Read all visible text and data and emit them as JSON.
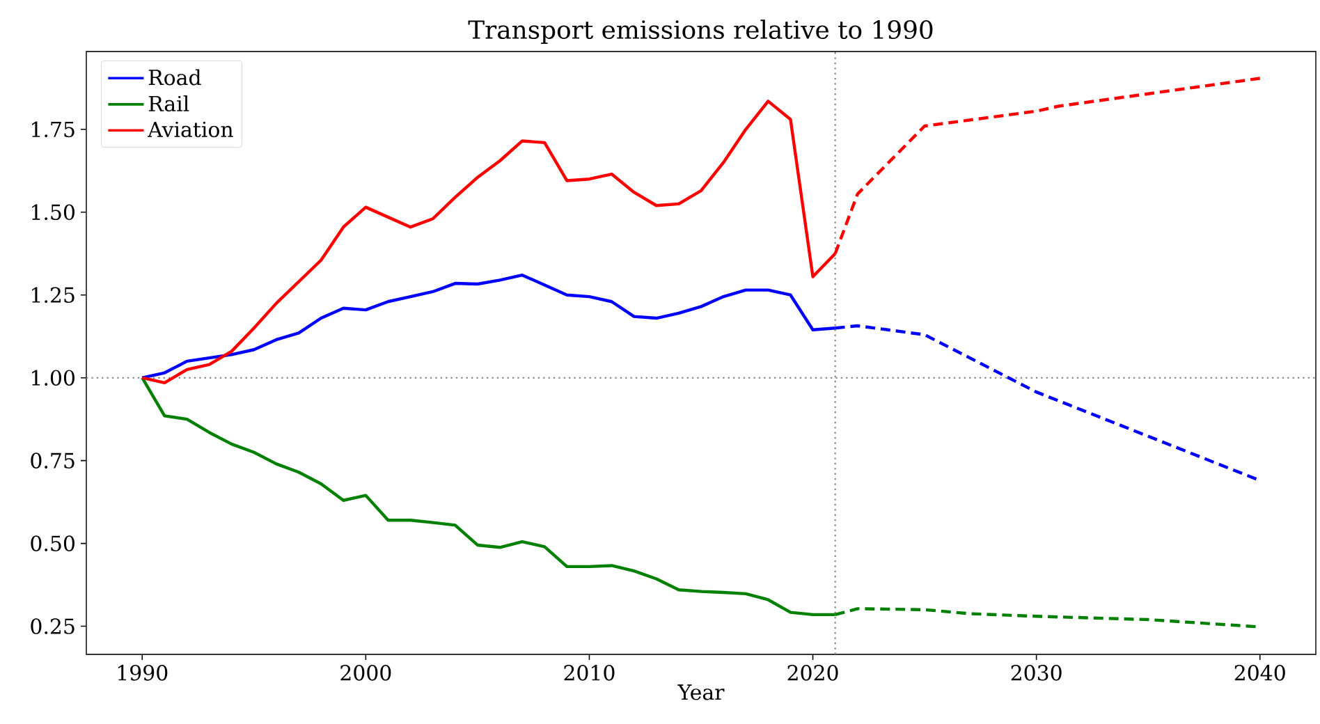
{
  "chart_data": {
    "type": "line",
    "title": "Transport emissions relative to 1990",
    "xlabel": "Year",
    "xlim": [
      1987.5,
      2042.5
    ],
    "xticks": [
      1990,
      2000,
      2010,
      2020,
      2030,
      2040
    ],
    "ylim": [
      0.165,
      1.985
    ],
    "yticks": [
      {
        "value": 0.25,
        "label": "0.25"
      },
      {
        "value": 0.5,
        "label": "0.50"
      },
      {
        "value": 0.75,
        "label": "0.75"
      },
      {
        "value": 1.0,
        "label": "1.00"
      },
      {
        "value": 1.25,
        "label": "1.25"
      },
      {
        "value": 1.5,
        "label": "1.50"
      },
      {
        "value": 1.75,
        "label": "1.75"
      }
    ],
    "grid": false,
    "legend": "top left",
    "marker": "none",
    "ref_lines": [
      {
        "axis": "y",
        "value": 1.0,
        "color": "#808080",
        "line_style": "dotted"
      },
      {
        "axis": "x",
        "value": 2021,
        "color": "#808080",
        "line_style": "dotted"
      }
    ],
    "series": [
      {
        "name": "Road",
        "color": "#0000ff",
        "line_style": "solid",
        "x": [
          1990,
          1991,
          1992,
          1993,
          1994,
          1995,
          1996,
          1997,
          1998,
          1999,
          2000,
          2001,
          2002,
          2003,
          2004,
          2005,
          2006,
          2007,
          2008,
          2009,
          2010,
          2011,
          2012,
          2013,
          2014,
          2015,
          2016,
          2017,
          2018,
          2019,
          2020,
          2021
        ],
        "values": [
          1.0,
          1.015,
          1.05,
          1.06,
          1.07,
          1.085,
          1.115,
          1.135,
          1.18,
          1.21,
          1.205,
          1.23,
          1.245,
          1.26,
          1.285,
          1.283,
          1.295,
          1.31,
          1.28,
          1.25,
          1.245,
          1.23,
          1.185,
          1.18,
          1.195,
          1.215,
          1.245,
          1.265,
          1.265,
          1.25,
          1.145,
          1.15
        ]
      },
      {
        "name": "Rail",
        "color": "#008000",
        "line_style": "solid",
        "x": [
          1990,
          1991,
          1992,
          1993,
          1994,
          1995,
          1996,
          1997,
          1998,
          1999,
          2000,
          2001,
          2002,
          2003,
          2004,
          2005,
          2006,
          2007,
          2008,
          2009,
          2010,
          2011,
          2012,
          2013,
          2014,
          2015,
          2016,
          2017,
          2018,
          2019,
          2020,
          2021
        ],
        "values": [
          1.0,
          0.885,
          0.875,
          0.835,
          0.8,
          0.775,
          0.74,
          0.715,
          0.68,
          0.63,
          0.645,
          0.57,
          0.57,
          0.563,
          0.555,
          0.495,
          0.488,
          0.505,
          0.49,
          0.43,
          0.43,
          0.433,
          0.417,
          0.393,
          0.36,
          0.355,
          0.352,
          0.348,
          0.33,
          0.292,
          0.285,
          0.285
        ]
      },
      {
        "name": "Aviation",
        "color": "#ff0000",
        "line_style": "solid",
        "x": [
          1990,
          1991,
          1992,
          1993,
          1994,
          1995,
          1996,
          1997,
          1998,
          1999,
          2000,
          2001,
          2002,
          2003,
          2004,
          2005,
          2006,
          2007,
          2008,
          2009,
          2010,
          2011,
          2012,
          2013,
          2014,
          2015,
          2016,
          2017,
          2018,
          2019,
          2020,
          2021
        ],
        "values": [
          1.0,
          0.985,
          1.025,
          1.04,
          1.08,
          1.15,
          1.225,
          1.29,
          1.355,
          1.455,
          1.515,
          1.485,
          1.455,
          1.48,
          1.545,
          1.605,
          1.655,
          1.715,
          1.71,
          1.595,
          1.6,
          1.615,
          1.56,
          1.52,
          1.525,
          1.565,
          1.65,
          1.75,
          1.835,
          1.78,
          1.305,
          1.375
        ]
      },
      {
        "color": "#0000ff",
        "line_style": "dashed",
        "x": [
          2021,
          2022,
          2025,
          2030,
          2040
        ],
        "values": [
          1.15,
          1.157,
          1.13,
          0.957,
          0.69
        ]
      },
      {
        "color": "#008000",
        "line_style": "dashed",
        "x": [
          2021,
          2022,
          2025,
          2027,
          2030,
          2035,
          2040
        ],
        "values": [
          0.285,
          0.303,
          0.3,
          0.288,
          0.28,
          0.27,
          0.248
        ]
      },
      {
        "color": "#ff0000",
        "line_style": "dashed",
        "x": [
          2021,
          2022,
          2025,
          2030,
          2031,
          2040
        ],
        "values": [
          1.375,
          1.555,
          1.76,
          1.805,
          1.82,
          1.904
        ]
      }
    ]
  }
}
